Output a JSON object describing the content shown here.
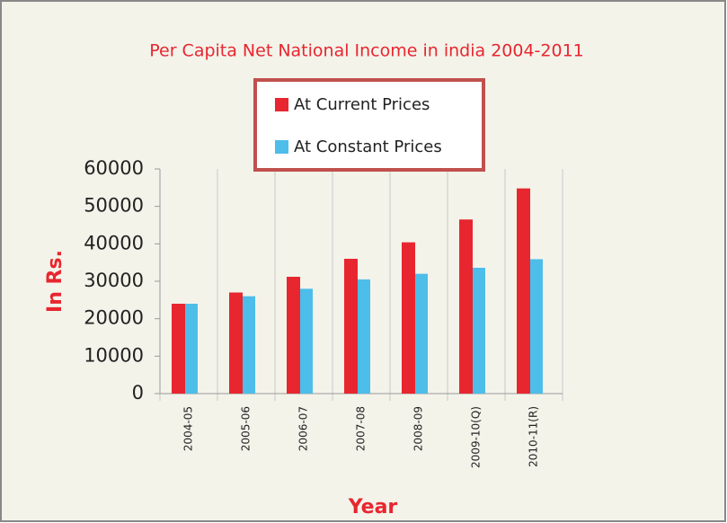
{
  "chart_data": {
    "type": "bar",
    "title": "Per Capita Net National Income in india 2004-2011",
    "x_label": "Year",
    "y_label": "In Rs.",
    "categories": [
      "2004-05",
      "2005-06",
      "2006-07",
      "2007-08",
      "2008-09",
      "2009-10(Q)",
      "2010-11(R)"
    ],
    "series": [
      {
        "name": "At Current Prices",
        "color": "#e8262f",
        "values": [
          24000,
          27000,
          31200,
          36000,
          40400,
          46500,
          54800
        ]
      },
      {
        "name": "At Constant Prices",
        "color": "#4dbde9",
        "values": [
          24000,
          26000,
          28000,
          30500,
          32000,
          33600,
          35900
        ]
      }
    ],
    "ylim": [
      0,
      60000
    ],
    "yticks": [
      0,
      10000,
      20000,
      30000,
      40000,
      50000,
      60000
    ],
    "grid": true,
    "legend": "top"
  }
}
